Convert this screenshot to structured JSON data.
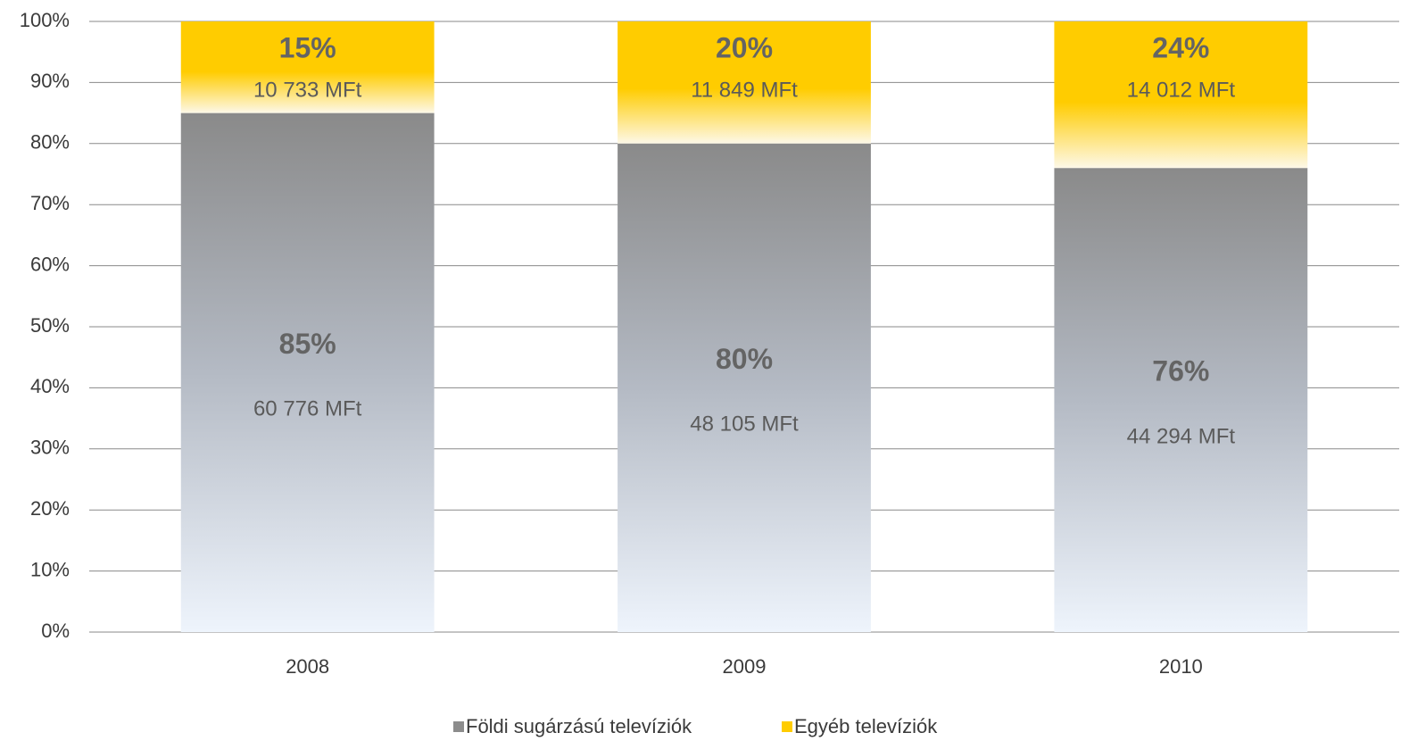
{
  "chart_data": {
    "type": "stacked_bar",
    "categories": [
      "2008",
      "2009",
      "2010"
    ],
    "series": [
      {
        "name": "Földi sugárzású televíziók",
        "color": "#8c8c8c",
        "values": [
          85,
          80,
          76
        ],
        "value_labels": [
          "85%",
          "80%",
          "76%"
        ],
        "amount_labels": [
          "60 776 MFt",
          "48 105 MFt",
          "44 294 MFt"
        ]
      },
      {
        "name": "Egyéb televíziók",
        "color": "#ffcc00",
        "values": [
          15,
          20,
          24
        ],
        "value_labels": [
          "15%",
          "20%",
          "24%"
        ],
        "amount_labels": [
          "10 733 MFt",
          "11 849 MFt",
          "14 012 MFt"
        ]
      }
    ],
    "ylim": [
      0,
      100
    ],
    "yticks": [
      {
        "value": 0,
        "label": "0%"
      },
      {
        "value": 10,
        "label": "10%"
      },
      {
        "value": 20,
        "label": "20%"
      },
      {
        "value": 30,
        "label": "30%"
      },
      {
        "value": 40,
        "label": "40%"
      },
      {
        "value": 50,
        "label": "50%"
      },
      {
        "value": 60,
        "label": "60%"
      },
      {
        "value": 70,
        "label": "70%"
      },
      {
        "value": 80,
        "label": "80%"
      },
      {
        "value": 90,
        "label": "90%"
      },
      {
        "value": 100,
        "label": "100%"
      }
    ],
    "grid": true,
    "legend": "bottom"
  }
}
